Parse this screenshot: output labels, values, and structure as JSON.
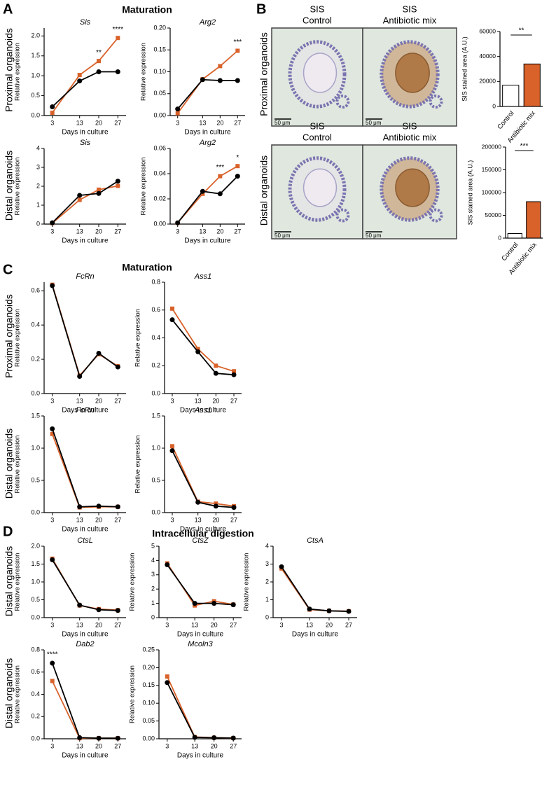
{
  "panels": [
    {
      "label": "A",
      "title": "Maturation",
      "row_labels": [
        "Proximal organoids",
        "Distal organoids"
      ]
    },
    {
      "label": "B",
      "row_labels": [
        "Proximal organoids",
        "Distal organoids"
      ],
      "images": [
        {
          "labels": [
            "SIS",
            "Control"
          ],
          "scale": "50 μm"
        },
        {
          "labels": [
            "SIS",
            "Antibiotic mix"
          ],
          "scale": "50 μm"
        },
        {
          "labels": [
            "SIS",
            "Control"
          ],
          "scale": "50 μm"
        },
        {
          "labels": [
            "SIS",
            "Antibiotic mix"
          ],
          "scale": "50 μm"
        }
      ]
    },
    {
      "label": "C",
      "title": "Maturation",
      "row_labels": [
        "Proximal organoids",
        "Distal organoids"
      ]
    },
    {
      "label": "D",
      "title": "Intracellular digestion",
      "row_labels": [
        "Distal organoids",
        "Distal organoids"
      ]
    }
  ],
  "chart_data": [
    {
      "type": "line",
      "title": "Sis",
      "xlabel": "Days in culture",
      "ylabel": "Relative expression",
      "x": [
        3,
        13,
        20,
        27
      ],
      "xlim": [
        0,
        30
      ],
      "xticks": [
        3,
        13,
        20,
        27
      ],
      "ylim": [
        0,
        2.2
      ],
      "yticks": [
        {
          "value": 0,
          "label": "0.0"
        },
        0.5,
        {
          "value": 1,
          "label": "1.0"
        },
        1.5,
        {
          "value": 2,
          "label": "2.0"
        }
      ],
      "series": [
        {
          "color": "#d9622b",
          "marker": "square",
          "values": [
            0.07,
            1.02,
            1.37,
            1.95
          ]
        },
        {
          "color": "#000000",
          "marker": "circle",
          "values": [
            0.22,
            0.87,
            1.1,
            1.1
          ]
        }
      ],
      "annotations": [
        {
          "x": 20,
          "text": "**"
        },
        {
          "x": 27,
          "text": "****"
        }
      ]
    },
    {
      "type": "line",
      "title": "Arg2",
      "xlabel": "Days in culture",
      "ylabel": "Relative expression",
      "x": [
        3,
        13,
        20,
        27
      ],
      "xlim": [
        0,
        30
      ],
      "xticks": [
        3,
        13,
        20,
        27
      ],
      "ylim": [
        0,
        0.2
      ],
      "yticks": [
        {
          "value": 0,
          "label": "0.00"
        },
        0.05,
        {
          "value": 0.1,
          "label": "0.10"
        },
        0.15,
        {
          "value": 0.2,
          "label": "0.20"
        }
      ],
      "series": [
        {
          "color": "#d9622b",
          "marker": "square",
          "values": [
            0.005,
            0.083,
            0.113,
            0.148
          ]
        },
        {
          "color": "#000000",
          "marker": "circle",
          "values": [
            0.015,
            0.082,
            0.08,
            0.08
          ]
        }
      ],
      "annotations": [
        {
          "x": 27,
          "text": "***"
        }
      ]
    },
    {
      "type": "line",
      "title": "Sis",
      "xlabel": "Days in culture",
      "ylabel": "Relative expression",
      "x": [
        3,
        13,
        20,
        27
      ],
      "xlim": [
        0,
        30
      ],
      "xticks": [
        3,
        13,
        20,
        27
      ],
      "ylim": [
        0,
        4
      ],
      "yticks": [
        0,
        1,
        2,
        3,
        4
      ],
      "series": [
        {
          "color": "#d9622b",
          "marker": "square",
          "values": [
            0.05,
            1.28,
            1.82,
            2.02
          ]
        },
        {
          "color": "#000000",
          "marker": "circle",
          "values": [
            0.07,
            1.52,
            1.62,
            2.27
          ]
        }
      ]
    },
    {
      "type": "line",
      "title": "Arg2",
      "xlabel": "Days in culture",
      "ylabel": "Relative expression",
      "x": [
        3,
        13,
        20,
        27
      ],
      "xlim": [
        0,
        30
      ],
      "xticks": [
        3,
        13,
        20,
        27
      ],
      "ylim": [
        0,
        0.06
      ],
      "yticks": [
        {
          "value": 0,
          "label": "0.00"
        },
        0.02,
        0.04,
        0.06
      ],
      "series": [
        {
          "color": "#d9622b",
          "marker": "square",
          "values": [
            0.001,
            0.024,
            0.038,
            0.046
          ]
        },
        {
          "color": "#000000",
          "marker": "circle",
          "values": [
            0.001,
            0.026,
            0.024,
            0.038
          ]
        }
      ],
      "annotations": [
        {
          "x": 20,
          "text": "***"
        },
        {
          "x": 27,
          "text": "*"
        }
      ]
    },
    {
      "type": "bar",
      "ylabel": "SIS stained area (A.U.)",
      "categories": [
        "Control",
        "Antibiotic mix"
      ],
      "values": [
        17000,
        34000
      ],
      "colors": [
        "#ffffff",
        "#d9622b"
      ],
      "ylim": [
        0,
        60000
      ],
      "yticks": [
        0,
        20000,
        40000,
        60000
      ],
      "annotation": "**"
    },
    {
      "type": "bar",
      "ylabel": "SIS stained area (A.U.)",
      "categories": [
        "Control",
        "Antibiotic mix"
      ],
      "values": [
        10000,
        80000
      ],
      "colors": [
        "#ffffff",
        "#d9622b"
      ],
      "ylim": [
        0,
        200000
      ],
      "yticks": [
        0,
        50000,
        100000,
        150000,
        200000
      ],
      "annotation": "***"
    },
    {
      "type": "line",
      "title": "FcRn",
      "xlabel": "Days in culture",
      "ylabel": "Relative expression",
      "x": [
        3,
        13,
        20,
        27
      ],
      "xlim": [
        0,
        30
      ],
      "xticks": [
        3,
        13,
        20,
        27
      ],
      "ylim": [
        0,
        0.65
      ],
      "yticks": [
        {
          "value": 0,
          "label": "0.0"
        },
        0.2,
        0.4,
        0.6
      ],
      "series": [
        {
          "color": "#d9622b",
          "marker": "square",
          "values": [
            0.635,
            0.105,
            0.23,
            0.16
          ]
        },
        {
          "color": "#000000",
          "marker": "circle",
          "values": [
            0.63,
            0.1,
            0.235,
            0.155
          ]
        }
      ]
    },
    {
      "type": "line",
      "title": "Ass1",
      "xlabel": "Days in culture",
      "ylabel": "Relative expression",
      "x": [
        3,
        13,
        20,
        27
      ],
      "xlim": [
        0,
        30
      ],
      "xticks": [
        3,
        13,
        20,
        27
      ],
      "ylim": [
        0,
        0.8
      ],
      "yticks": [
        {
          "value": 0,
          "label": "0.0"
        },
        0.2,
        0.4,
        0.6,
        0.8
      ],
      "series": [
        {
          "color": "#d9622b",
          "marker": "square",
          "values": [
            0.61,
            0.32,
            0.2,
            0.16
          ]
        },
        {
          "color": "#000000",
          "marker": "circle",
          "values": [
            0.53,
            0.3,
            0.145,
            0.135
          ]
        }
      ]
    },
    {
      "type": "line",
      "title": "FcRn",
      "xlabel": "Days in culture",
      "ylabel": "Relative expression",
      "x": [
        3,
        13,
        20,
        27
      ],
      "xlim": [
        0,
        30
      ],
      "xticks": [
        3,
        13,
        20,
        27
      ],
      "ylim": [
        0,
        1.5
      ],
      "yticks": [
        {
          "value": 0,
          "label": "0.0"
        },
        0.5,
        {
          "value": 1,
          "label": "1.0"
        },
        1.5
      ],
      "series": [
        {
          "color": "#d9622b",
          "marker": "square",
          "values": [
            1.22,
            0.08,
            0.09,
            0.09
          ]
        },
        {
          "color": "#000000",
          "marker": "circle",
          "values": [
            1.3,
            0.09,
            0.1,
            0.09
          ]
        }
      ]
    },
    {
      "type": "line",
      "title": "Ass1",
      "xlabel": "Days in culture",
      "ylabel": "Relative expression",
      "x": [
        3,
        13,
        20,
        27
      ],
      "xlim": [
        0,
        30
      ],
      "xticks": [
        3,
        13,
        20,
        27
      ],
      "ylim": [
        0,
        1.5
      ],
      "yticks": [
        {
          "value": 0,
          "label": "0.0"
        },
        0.5,
        {
          "value": 1,
          "label": "1.0"
        },
        1.5
      ],
      "series": [
        {
          "color": "#d9622b",
          "marker": "square",
          "values": [
            1.03,
            0.17,
            0.14,
            0.1
          ]
        },
        {
          "color": "#000000",
          "marker": "circle",
          "values": [
            0.96,
            0.16,
            0.1,
            0.08
          ]
        }
      ]
    },
    {
      "type": "line",
      "title": "CtsL",
      "xlabel": "Days in culture",
      "ylabel": "Relative expression",
      "x": [
        3,
        13,
        20,
        27
      ],
      "xlim": [
        0,
        30
      ],
      "xticks": [
        3,
        13,
        20,
        27
      ],
      "ylim": [
        0,
        2
      ],
      "yticks": [
        {
          "value": 0,
          "label": "0.0"
        },
        0.5,
        {
          "value": 1,
          "label": "1.0"
        },
        1.5,
        {
          "value": 2,
          "label": "2.0"
        }
      ],
      "series": [
        {
          "color": "#d9622b",
          "marker": "square",
          "values": [
            1.65,
            0.34,
            0.24,
            0.21
          ]
        },
        {
          "color": "#000000",
          "marker": "circle",
          "values": [
            1.62,
            0.35,
            0.22,
            0.2
          ]
        }
      ]
    },
    {
      "type": "line",
      "title": "CtsZ",
      "xlabel": "Days in culture",
      "ylabel": "Relative expression",
      "x": [
        3,
        13,
        20,
        27
      ],
      "xlim": [
        0,
        30
      ],
      "xticks": [
        3,
        13,
        20,
        27
      ],
      "ylim": [
        0,
        5
      ],
      "yticks": [
        0,
        1,
        2,
        3,
        4,
        5
      ],
      "series": [
        {
          "color": "#d9622b",
          "marker": "square",
          "values": [
            3.8,
            0.85,
            1.15,
            0.92
          ]
        },
        {
          "color": "#000000",
          "marker": "circle",
          "values": [
            3.7,
            1.0,
            1.0,
            0.9
          ]
        }
      ]
    },
    {
      "type": "line",
      "title": "CtsA",
      "xlabel": "Days in culture",
      "ylabel": "Relative expression",
      "x": [
        3,
        13,
        20,
        27
      ],
      "xlim": [
        0,
        30
      ],
      "xticks": [
        3,
        13,
        20,
        27
      ],
      "ylim": [
        0,
        4
      ],
      "yticks": [
        0,
        1,
        2,
        3,
        4
      ],
      "series": [
        {
          "color": "#d9622b",
          "marker": "square",
          "values": [
            2.75,
            0.45,
            0.38,
            0.36
          ]
        },
        {
          "color": "#000000",
          "marker": "circle",
          "values": [
            2.85,
            0.48,
            0.38,
            0.35
          ]
        }
      ]
    },
    {
      "type": "line",
      "title": "Dab2",
      "xlabel": "Days in culture",
      "ylabel": "Relative expression",
      "x": [
        3,
        13,
        20,
        27
      ],
      "xlim": [
        0,
        30
      ],
      "xticks": [
        3,
        13,
        20,
        27
      ],
      "ylim": [
        0,
        0.8
      ],
      "yticks": [
        {
          "value": 0,
          "label": "0.0"
        },
        0.2,
        0.4,
        0.6,
        0.8
      ],
      "series": [
        {
          "color": "#d9622b",
          "marker": "square",
          "values": [
            0.52,
            0.005,
            0.005,
            0.005
          ]
        },
        {
          "color": "#000000",
          "marker": "circle",
          "values": [
            0.68,
            0.01,
            0.005,
            0.005
          ]
        }
      ],
      "annotations": [
        {
          "x": 3,
          "text": "****"
        }
      ]
    },
    {
      "type": "line",
      "title": "Mcoln3",
      "xlabel": "Days in culture",
      "ylabel": "Relative expression",
      "x": [
        3,
        13,
        20,
        27
      ],
      "xlim": [
        0,
        30
      ],
      "xticks": [
        3,
        13,
        20,
        27
      ],
      "ylim": [
        0,
        0.25
      ],
      "yticks": [
        {
          "value": 0,
          "label": "0.00"
        },
        0.05,
        {
          "value": 0.1,
          "label": "0.10"
        },
        0.15,
        {
          "value": 0.2,
          "label": "0.20"
        },
        0.25
      ],
      "series": [
        {
          "color": "#d9622b",
          "marker": "square",
          "values": [
            0.175,
            0.005,
            0.003,
            0.002
          ]
        },
        {
          "color": "#000000",
          "marker": "circle",
          "values": [
            0.158,
            0.004,
            0.003,
            0.002
          ]
        }
      ]
    }
  ]
}
